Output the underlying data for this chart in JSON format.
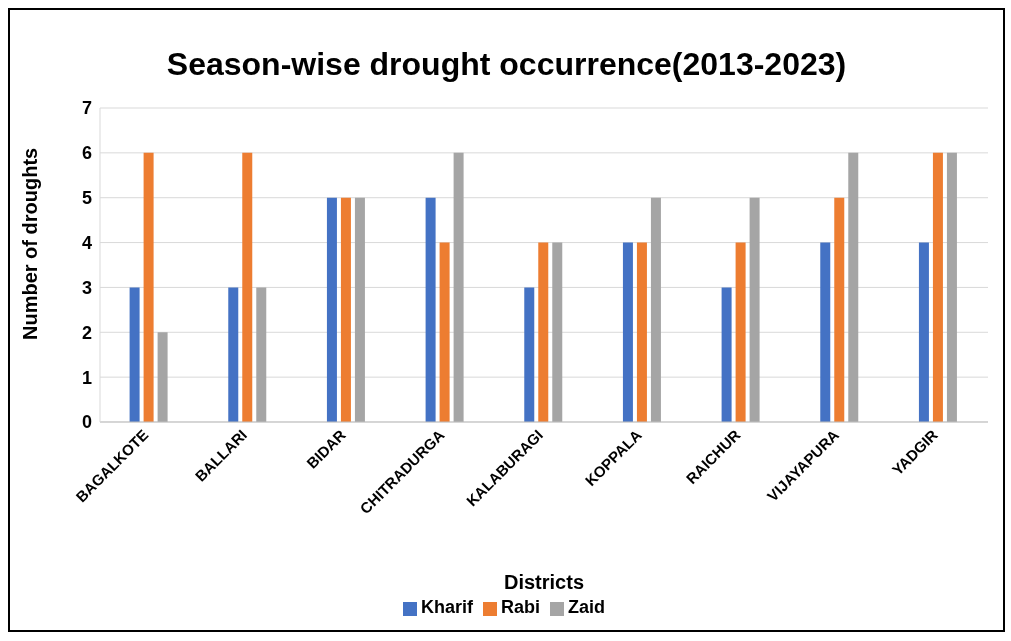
{
  "chart_data": {
    "type": "bar",
    "title": "Season-wise drought occurrence(2013-2023)",
    "xlabel": "Districts",
    "ylabel": "Number of droughts",
    "categories": [
      "BAGALKOTE",
      "BALLARI",
      "BIDAR",
      "CHITRADURGA",
      "KALABURAGI",
      "KOPPALA",
      "RAICHUR",
      "VIJAYAPURA",
      "YADGIR"
    ],
    "series": [
      {
        "name": "Kharif",
        "color": "#4472c4",
        "values": [
          3,
          3,
          5,
          5,
          3,
          4,
          3,
          4,
          4
        ]
      },
      {
        "name": "Rabi",
        "color": "#ed7d31",
        "values": [
          6,
          6,
          5,
          4,
          4,
          4,
          4,
          5,
          6
        ]
      },
      {
        "name": "Zaid",
        "color": "#a5a5a5",
        "values": [
          2,
          3,
          5,
          6,
          4,
          5,
          5,
          6,
          6
        ]
      }
    ],
    "ylim": [
      0,
      7
    ],
    "yticks": [
      0,
      1,
      2,
      3,
      4,
      5,
      6,
      7
    ],
    "grid": "y",
    "legend": "bottom"
  }
}
